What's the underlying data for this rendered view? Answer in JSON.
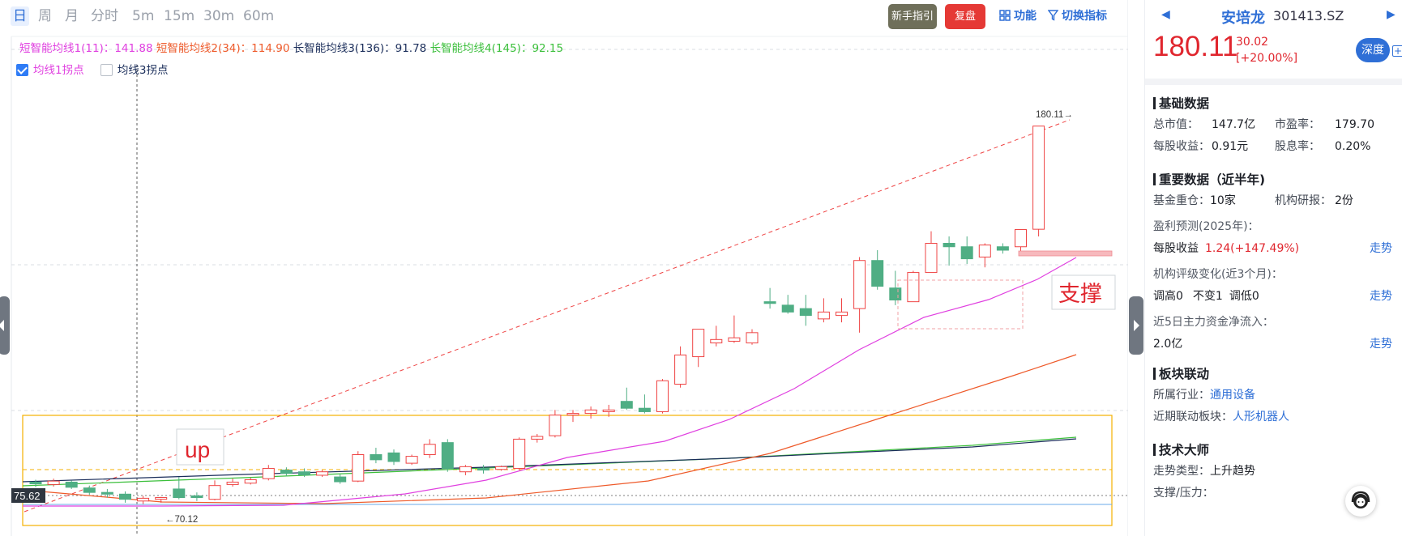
{
  "toolbar": {
    "period_tabs": [
      "日",
      "周",
      "月",
      "分时",
      "5m",
      "15m",
      "30m",
      "60m"
    ],
    "active_tab": "日",
    "guide_label": "新手指引",
    "replay_label": "复盘",
    "function_label": "功能",
    "switch_indicator_label": "切换指标",
    "guide_color": "#6f6f5a",
    "replay_color": "#e53935"
  },
  "ma_legend": {
    "ma1_label": "短智能均线1(11)：",
    "ma1_value": "141.88",
    "ma2_label": "短智能均线2(34)：",
    "ma2_value": "114.90",
    "ma3_label": "长智能均线3(136)：",
    "ma3_value": "91.78",
    "ma4_label": "长智能均线4(145)：",
    "ma4_value": "92.15",
    "ma1_color": "#e040e0",
    "ma2_color": "#ee5a2a",
    "ma3_color": "#1a2d5a",
    "ma4_color": "#3bbf3b"
  },
  "inflection": {
    "ma1_label": "均线1拐点",
    "ma1_checked": true,
    "ma3_label": "均线3拐点",
    "ma3_checked": false
  },
  "chart": {
    "high_label": "180.11→",
    "low_label": "←70.12",
    "current_price_tag": "75.62",
    "annotation_up": "up",
    "annotation_support": "支撑",
    "up_color": "#ef4444",
    "down_color": "#4fae84",
    "box_color": "#f5b100"
  },
  "stock": {
    "name": "安培龙",
    "code": "301413.SZ",
    "price": "180.11",
    "change": "30.02",
    "change_pct": "[+20.00%]",
    "deep_label": "深度",
    "add_label": "+"
  },
  "basic": {
    "title": "基础数据",
    "market_cap_label": "总市值：",
    "market_cap": "147.7亿",
    "pe_label": "市盈率：",
    "pe": "179.70",
    "eps_label": "每股收益：",
    "eps": "0.91元",
    "dividend_label": "股息率：",
    "dividend": "0.20%"
  },
  "important": {
    "title": "重要数据（近半年)",
    "fund_label": "基金重仓：",
    "fund": "10家",
    "research_label": "机构研报：",
    "research": "2份",
    "forecast_label": "盈利预测(2025年)：",
    "forecast_eps_label": "每股收益",
    "forecast_eps": "1.24(+147.49%)",
    "rating_label": "机构评级变化(近3个月)：",
    "rating_up": "调高0",
    "rating_same": "不变1",
    "rating_down": "调低0",
    "capital_label": "近5日主力资金净流入：",
    "capital": "2.0亿",
    "trend_link": "走势"
  },
  "sector": {
    "title": "板块联动",
    "industry_label": "所属行业：",
    "industry": "通用设备",
    "linked_label": "近期联动板块：",
    "linked": "人形机器人"
  },
  "tech": {
    "title": "技术大师",
    "trend_type_label": "走势类型：",
    "trend_type": "上升趋势",
    "support_label": "支撑/压力："
  },
  "chart_data": {
    "type": "candlestick",
    "ohlc_estimated": [
      [
        76.5,
        77.2,
        75.0,
        76.0
      ],
      [
        75.8,
        77.5,
        75.2,
        76.8
      ],
      [
        76.5,
        77.0,
        74.5,
        75.0
      ],
      [
        74.8,
        75.5,
        72.8,
        73.5
      ],
      [
        73.5,
        74.5,
        72.0,
        73.0
      ],
      [
        73.0,
        73.8,
        70.5,
        71.5
      ],
      [
        71.0,
        72.5,
        70.12,
        71.8
      ],
      [
        71.5,
        72.2,
        70.5,
        72.0
      ],
      [
        74.5,
        78.0,
        71.5,
        72.0
      ],
      [
        72.5,
        73.5,
        71.0,
        72.0
      ],
      [
        71.5,
        77.0,
        71.2,
        75.5
      ],
      [
        75.8,
        77.5,
        75.2,
        76.5
      ],
      [
        76.2,
        77.8,
        75.8,
        77.2
      ],
      [
        77.5,
        81.5,
        77.0,
        80.5
      ],
      [
        80.0,
        80.8,
        78.2,
        79.0
      ],
      [
        79.5,
        80.5,
        78.0,
        78.6
      ],
      [
        78.5,
        80.0,
        78.0,
        79.5
      ],
      [
        78.0,
        78.8,
        76.0,
        76.6
      ],
      [
        76.8,
        85.5,
        76.5,
        84.5
      ],
      [
        84.5,
        86.5,
        82.0,
        83.0
      ],
      [
        85.0,
        86.0,
        81.5,
        82.5
      ],
      [
        82.0,
        84.5,
        81.5,
        84.0
      ],
      [
        84.5,
        89.0,
        83.5,
        87.5
      ],
      [
        88.0,
        89.0,
        79.5,
        80.5
      ],
      [
        79.5,
        81.5,
        78.5,
        81.0
      ],
      [
        80.5,
        81.5,
        79.0,
        80.0
      ],
      [
        80.2,
        81.3,
        79.8,
        81.0
      ],
      [
        80.5,
        89.5,
        80.0,
        89.0
      ],
      [
        89.0,
        90.5,
        88.0,
        89.8
      ],
      [
        90.0,
        97.5,
        89.5,
        96.0
      ],
      [
        96.0,
        97.5,
        94.0,
        96.5
      ],
      [
        96.5,
        98.5,
        95.0,
        97.5
      ],
      [
        97.0,
        99.0,
        95.5,
        97.5
      ],
      [
        100.0,
        104.0,
        97.5,
        98.0
      ],
      [
        98.0,
        102.0,
        96.5,
        97.0
      ],
      [
        97.0,
        106.5,
        96.5,
        106.0
      ],
      [
        105.0,
        116.0,
        104.0,
        113.5
      ],
      [
        113.0,
        120.0,
        110.0,
        121.0
      ],
      [
        117.0,
        122.0,
        116.0,
        118.0
      ],
      [
        117.5,
        125.0,
        117.0,
        118.5
      ],
      [
        117.0,
        121.0,
        116.5,
        120.0
      ],
      [
        129.0,
        133.0,
        127.0,
        128.5
      ],
      [
        128.0,
        131.0,
        125.5,
        126.0
      ],
      [
        127.0,
        131.0,
        122.0,
        125.0
      ],
      [
        124.0,
        130.0,
        123.0,
        126.0
      ],
      [
        125.0,
        130.0,
        123.0,
        126.0
      ],
      [
        127.0,
        142.0,
        120.0,
        141.0
      ],
      [
        141.0,
        144.0,
        132.5,
        133.5
      ],
      [
        133.0,
        138.0,
        128.0,
        129.5
      ],
      [
        129.0,
        138.0,
        129.0,
        137.5
      ],
      [
        137.5,
        149.5,
        137.5,
        146.0
      ],
      [
        146.0,
        148.0,
        139.5,
        145.0
      ],
      [
        145.0,
        148.0,
        140.0,
        141.5
      ],
      [
        142.0,
        146.0,
        139.0,
        145.5
      ],
      [
        145.0,
        146.0,
        143.0,
        144.0
      ],
      [
        145.0,
        148.0,
        143.0,
        150.0
      ],
      [
        150.09,
        180.11,
        148.0,
        180.11
      ]
    ],
    "ma_values_last": {
      "ma1": 141.88,
      "ma2": 114.9,
      "ma3": 91.78,
      "ma4": 92.15
    },
    "high": 180.11,
    "low": 70.12,
    "current_marker": 75.62
  }
}
